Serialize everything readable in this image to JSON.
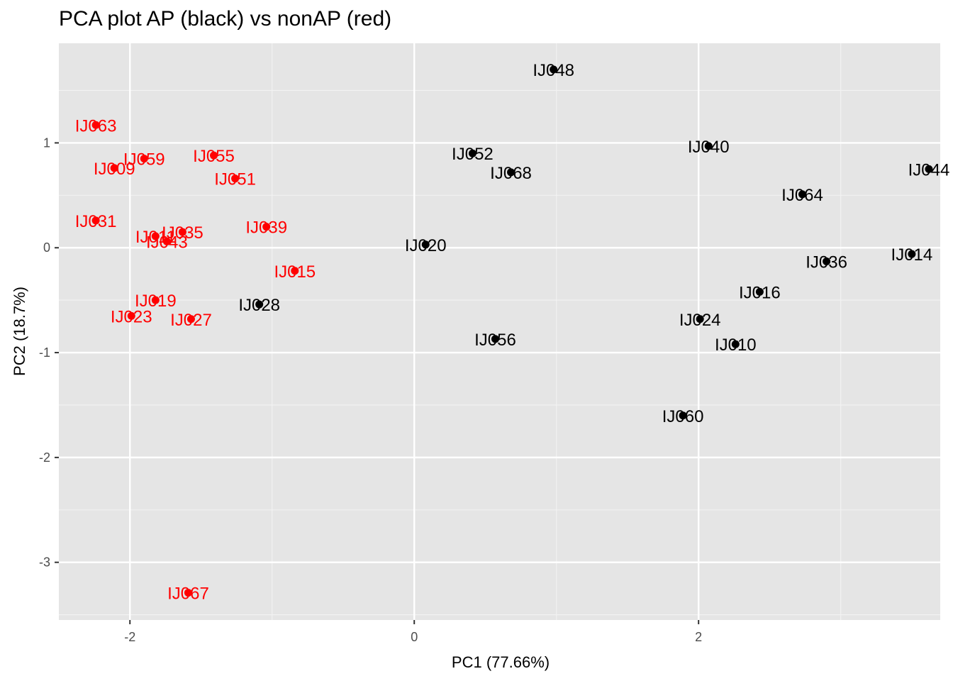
{
  "chart_data": {
    "type": "scatter",
    "title": "PCA plot AP (black) vs nonAP (red)",
    "xlabel": "PC1 (77.66%)",
    "ylabel": "PC2 (18.7%)",
    "xlim": [
      -2.5,
      3.7
    ],
    "ylim": [
      -3.55,
      1.95
    ],
    "x_ticks": [
      -2,
      0,
      2
    ],
    "x_tick_labels": [
      "-2",
      "0",
      "2"
    ],
    "y_ticks": [
      1,
      0,
      -1,
      -2,
      -3
    ],
    "y_tick_labels": [
      "1",
      "0",
      "-1",
      "-2",
      "-3"
    ],
    "grid": true,
    "series": [
      {
        "name": "AP",
        "color": "#000000",
        "points": [
          {
            "label": "IJ048",
            "x": 0.98,
            "y": 1.7
          },
          {
            "label": "IJ052",
            "x": 0.41,
            "y": 0.9
          },
          {
            "label": "IJ068",
            "x": 0.68,
            "y": 0.72
          },
          {
            "label": "IJ040",
            "x": 2.07,
            "y": 0.97
          },
          {
            "label": "IJ044",
            "x": 3.62,
            "y": 0.75
          },
          {
            "label": "IJ064",
            "x": 2.73,
            "y": 0.51
          },
          {
            "label": "IJ020",
            "x": 0.08,
            "y": 0.03
          },
          {
            "label": "IJ014",
            "x": 3.5,
            "y": -0.06
          },
          {
            "label": "IJ036",
            "x": 2.9,
            "y": -0.13
          },
          {
            "label": "IJ016",
            "x": 2.43,
            "y": -0.42
          },
          {
            "label": "IJ028",
            "x": -1.09,
            "y": -0.54
          },
          {
            "label": "IJ024",
            "x": 2.01,
            "y": -0.68
          },
          {
            "label": "IJ056",
            "x": 0.57,
            "y": -0.87
          },
          {
            "label": "IJ010",
            "x": 2.26,
            "y": -0.92
          },
          {
            "label": "IJ060",
            "x": 1.89,
            "y": -1.6
          }
        ]
      },
      {
        "name": "nonAP",
        "color": "#ff0000",
        "points": [
          {
            "label": "IJ063",
            "x": -2.24,
            "y": 1.17
          },
          {
            "label": "IJ059",
            "x": -1.9,
            "y": 0.85
          },
          {
            "label": "IJ055",
            "x": -1.41,
            "y": 0.88
          },
          {
            "label": "IJ009",
            "x": -2.11,
            "y": 0.76
          },
          {
            "label": "IJ051",
            "x": -1.26,
            "y": 0.66
          },
          {
            "label": "IJ031",
            "x": -2.24,
            "y": 0.26
          },
          {
            "label": "IJ039",
            "x": -1.04,
            "y": 0.2
          },
          {
            "label": "IJ035",
            "x": -1.63,
            "y": 0.15
          },
          {
            "label": "IJ011",
            "x": -1.82,
            "y": 0.11
          },
          {
            "label": "IJ043",
            "x": -1.74,
            "y": 0.06
          },
          {
            "label": "IJ015",
            "x": -0.84,
            "y": -0.22
          },
          {
            "label": "IJ019",
            "x": -1.82,
            "y": -0.5
          },
          {
            "label": "IJ023",
            "x": -1.99,
            "y": -0.65
          },
          {
            "label": "IJ027",
            "x": -1.57,
            "y": -0.68
          },
          {
            "label": "IJ067",
            "x": -1.59,
            "y": -3.29
          }
        ]
      }
    ]
  }
}
